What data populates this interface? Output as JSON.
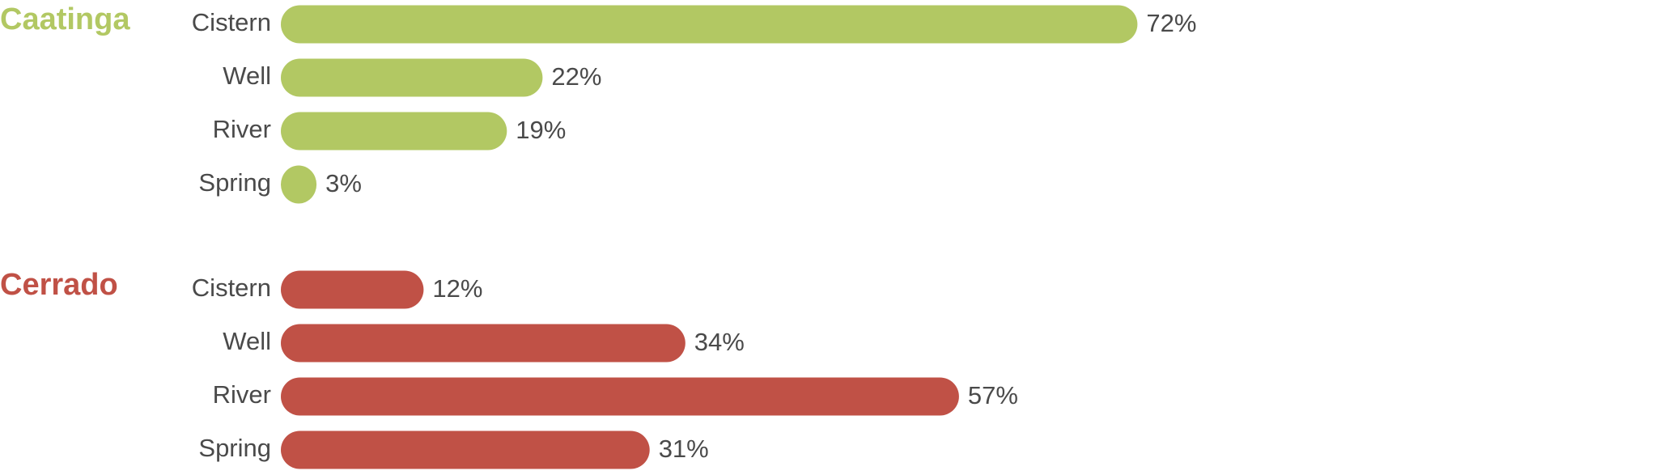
{
  "chart_data": [
    {
      "type": "bar",
      "orientation": "horizontal",
      "title": "Caatinga",
      "color": "#b2c863",
      "categories": [
        "Cistern",
        "Well",
        "River",
        "Spring"
      ],
      "values": [
        72,
        22,
        19,
        3
      ],
      "value_labels": [
        "72%",
        "22%",
        "19%",
        "3%"
      ]
    },
    {
      "type": "bar",
      "orientation": "horizontal",
      "title": "Cerrado",
      "color": "#c05146",
      "categories": [
        "Cistern",
        "Well",
        "River",
        "Spring"
      ],
      "values": [
        12,
        34,
        57,
        31
      ],
      "value_labels": [
        "12%",
        "34%",
        "57%",
        "31%"
      ]
    }
  ]
}
